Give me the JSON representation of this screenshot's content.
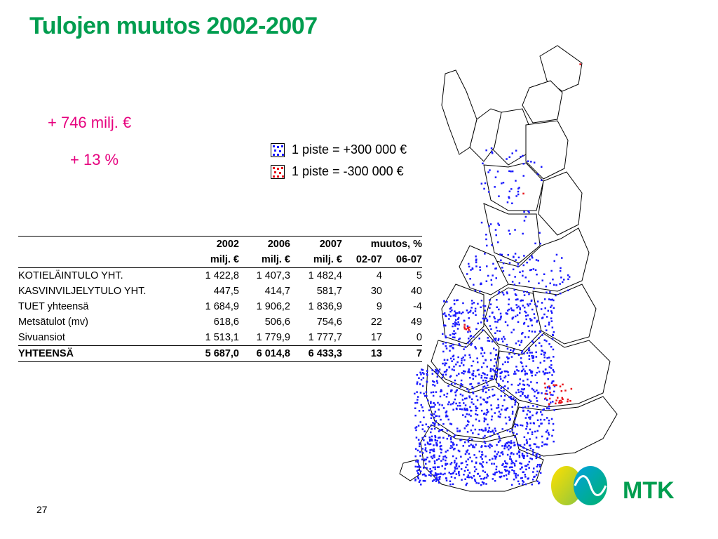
{
  "slide": {
    "title": "Tulojen muutos 2002-2007",
    "change_amount": "+ 746 milj. €",
    "change_percent": "+ 13 %",
    "page_number": "27"
  },
  "legend": {
    "positive": {
      "label": "1 piste = +300 000 €",
      "color": "#1a1aff"
    },
    "negative": {
      "label": "1 piste = -300 000 €",
      "color": "#e8141b"
    }
  },
  "table": {
    "header_row1": [
      "",
      "2002",
      "2006",
      "2007",
      "muutos, %",
      ""
    ],
    "header_row2": [
      "",
      "milj. €",
      "milj. €",
      "milj. €",
      "02-07",
      "06-07"
    ],
    "rows": [
      [
        "KOTIELÄINTULO YHT.",
        "1 422,8",
        "1 407,3",
        "1 482,4",
        "4",
        "5"
      ],
      [
        "KASVINVILJELYTULO YHT.",
        "447,5",
        "414,7",
        "581,7",
        "30",
        "40"
      ],
      [
        "TUET yhteensä",
        "1 684,9",
        "1 906,2",
        "1 836,9",
        "9",
        "-4"
      ],
      [
        "Metsätulot (mv)",
        "618,6",
        "506,6",
        "754,6",
        "22",
        "49"
      ],
      [
        "Sivuansiot",
        "1 513,1",
        "1 779,9",
        "1 777,7",
        "17",
        "0"
      ],
      [
        "YHTEENSÄ",
        "5 687,0",
        "6 014,8",
        "6 433,3",
        "13",
        "7"
      ]
    ]
  },
  "logo": {
    "text": "MTK",
    "color": "#009d4f"
  },
  "colors": {
    "title": "#009d4f",
    "accent": "#e6007e"
  }
}
